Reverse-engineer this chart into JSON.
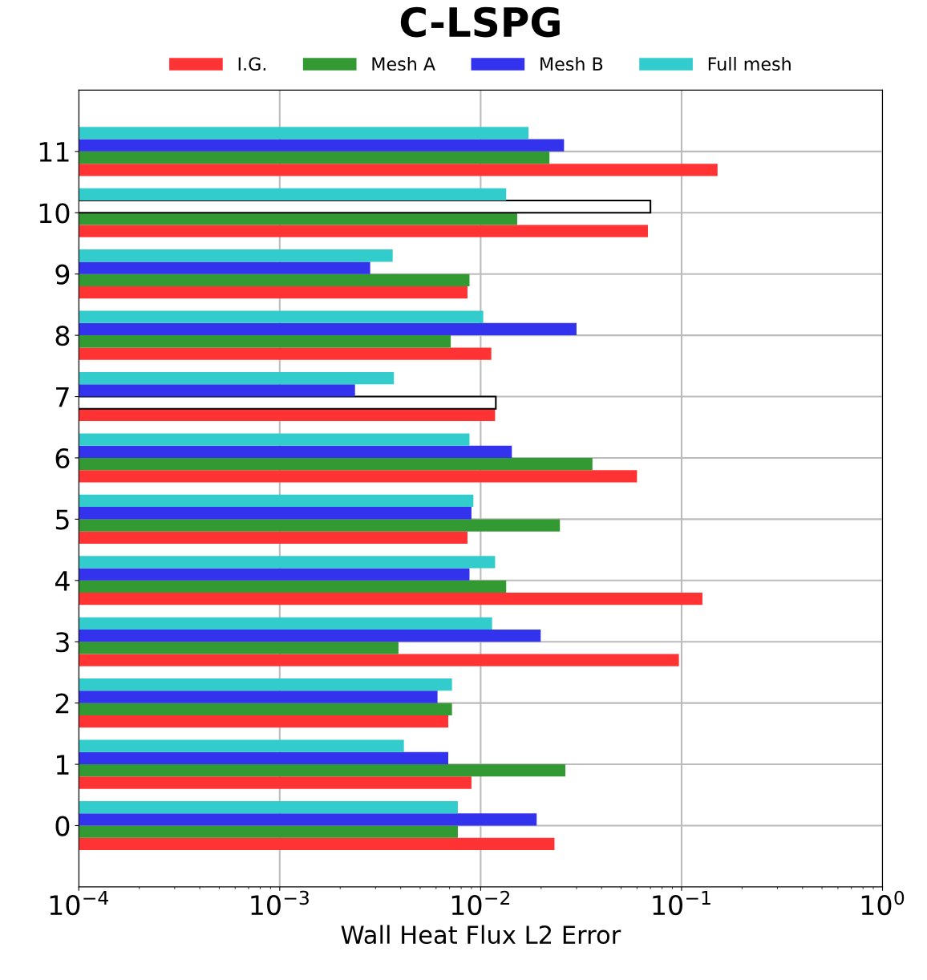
{
  "chart_data": {
    "type": "bar",
    "orientation": "horizontal",
    "title": "C-LSPG",
    "xlabel": "Wall Heat Flux L2 Error",
    "categories": [
      "11",
      "10",
      "9",
      "8",
      "7",
      "6",
      "5",
      "4",
      "3",
      "2",
      "1",
      "0"
    ],
    "series": [
      {
        "name": "I.G.",
        "color": "#ff3333",
        "values": [
          0.151,
          0.068,
          0.0086,
          0.0113,
          0.0118,
          0.06,
          0.0086,
          0.127,
          0.097,
          0.0069,
          0.009,
          0.0233
        ]
      },
      {
        "name": "Mesh A",
        "color": "#339933",
        "colors": [
          "#339933",
          "#339933",
          "#339933",
          "#339933",
          "#ffffff",
          "#339933",
          "#339933",
          "#339933",
          "#339933",
          "#339933",
          "#339933",
          "#339933"
        ],
        "values": [
          0.022,
          0.0152,
          0.0088,
          0.0071,
          0.0119,
          0.036,
          0.0248,
          0.0134,
          0.0039,
          0.0072,
          0.0264,
          0.0077
        ]
      },
      {
        "name": "Mesh B",
        "color": "#3333ee",
        "colors": [
          "#3333ee",
          "#ffffff",
          "#3333ee",
          "#3333ee",
          "#3333ee",
          "#3333ee",
          "#3333ee",
          "#3333ee",
          "#3333ee",
          "#3333ee",
          "#3333ee",
          "#3333ee"
        ],
        "values": [
          0.026,
          0.07,
          0.00282,
          0.03,
          0.00237,
          0.0143,
          0.009,
          0.0088,
          0.0199,
          0.0061,
          0.0069,
          0.019
        ]
      },
      {
        "name": "Full mesh",
        "color": "#33cccc",
        "values": [
          0.0173,
          0.0134,
          0.00365,
          0.0103,
          0.0037,
          0.0088,
          0.0092,
          0.0118,
          0.0114,
          0.0072,
          0.00415,
          0.0077
        ]
      }
    ],
    "log": "x",
    "xlim": [
      0.0001,
      1
    ],
    "xticks": [
      {
        "value": 0.0001,
        "label": "10$^{−4}$"
      },
      {
        "value": 0.001,
        "label": "10$^{−3}$"
      },
      {
        "value": 0.01,
        "label": "10$^{−2}$"
      },
      {
        "value": 0.1,
        "label": "10$^{−1}$"
      },
      {
        "value": 1,
        "label": "10$^{0}$"
      }
    ],
    "grid": true,
    "legend": "top"
  }
}
